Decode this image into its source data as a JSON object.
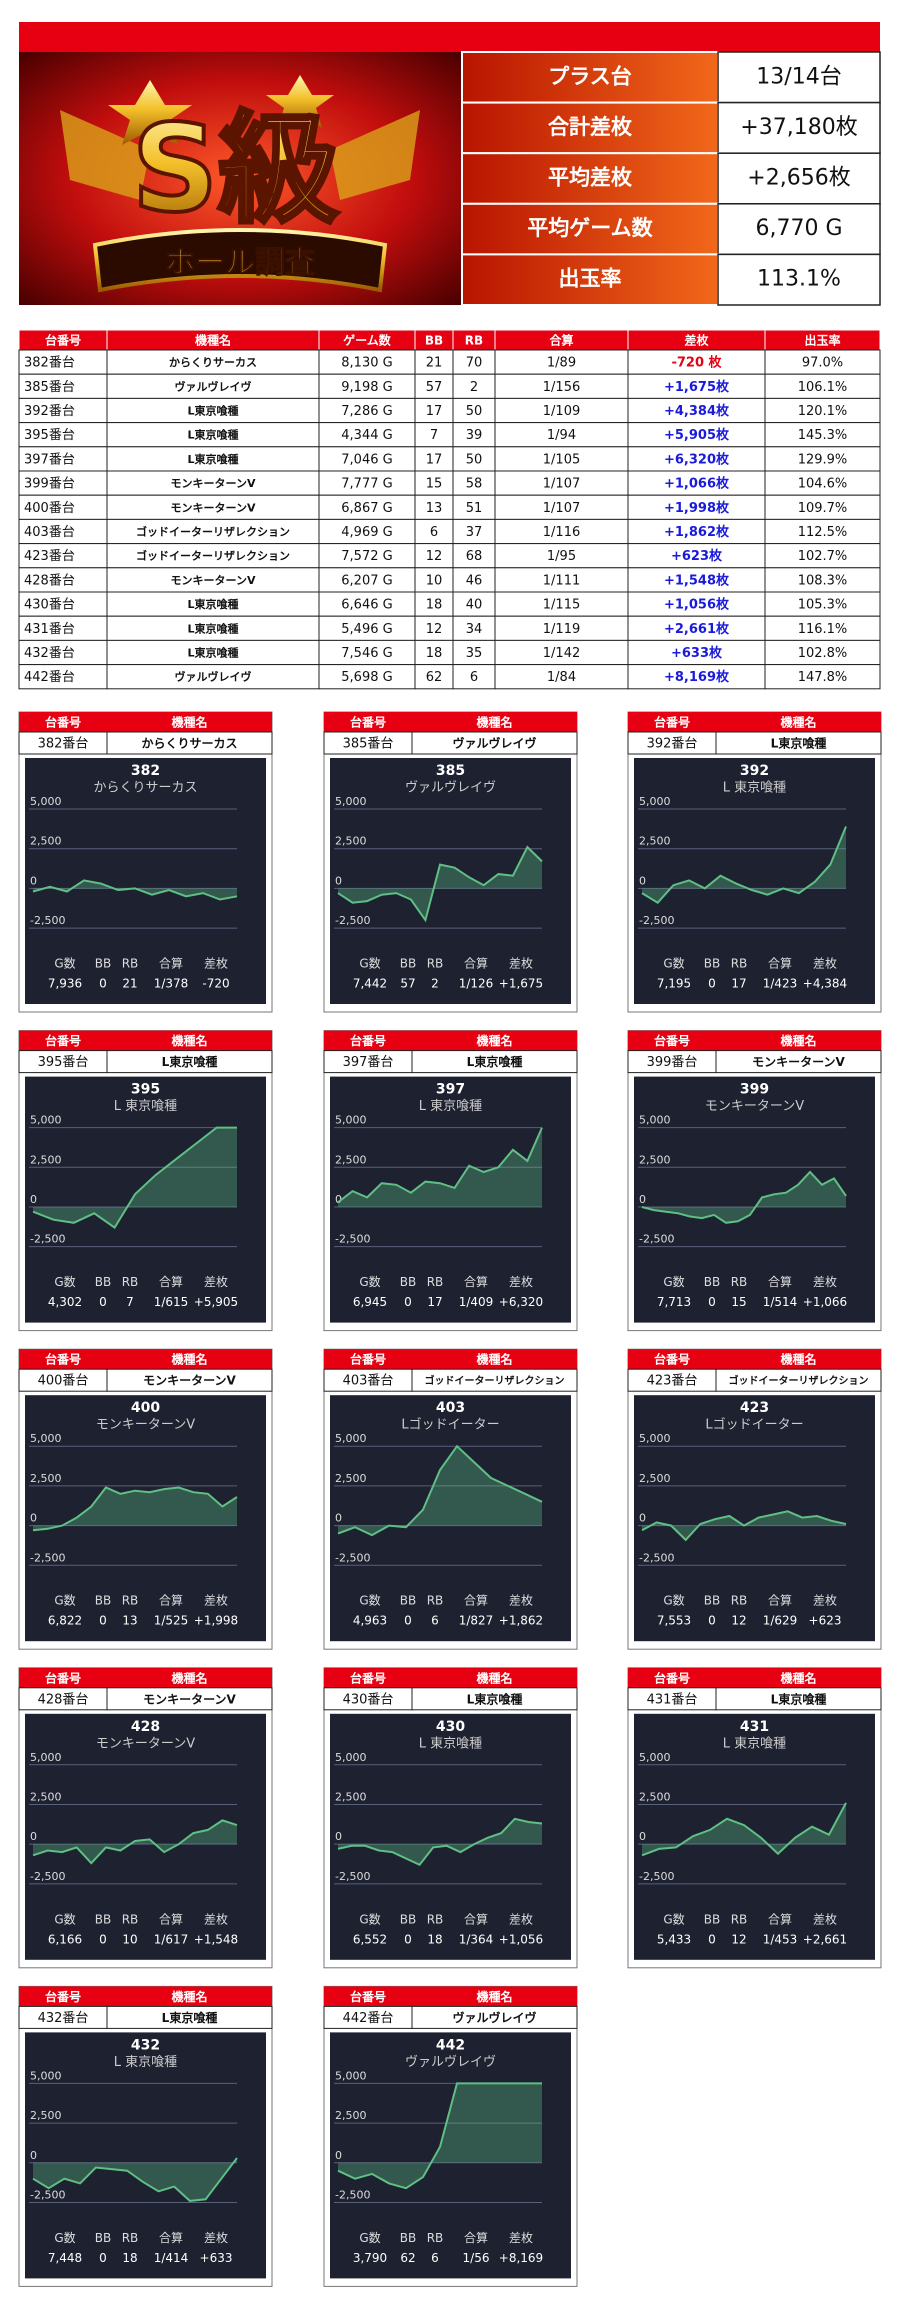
{
  "banner": {
    "logo": "S級",
    "subtitle": "ホール調査"
  },
  "summary": [
    {
      "label": "プラス台",
      "value": "13/14台"
    },
    {
      "label": "合計差枚",
      "value": "+37,180枚"
    },
    {
      "label": "平均差枚",
      "value": "+2,656枚"
    },
    {
      "label": "平均ゲーム数",
      "value": "6,770 G"
    },
    {
      "label": "出玉率",
      "value": "113.1%"
    }
  ],
  "table": {
    "header": [
      "台番号",
      "機種名",
      "ゲーム数",
      "BB",
      "RB",
      "合算",
      "差枚",
      "出玉率"
    ],
    "rows": [
      [
        "382番台",
        "からくりサーカス",
        "8,130 G",
        "21",
        "70",
        "1/89",
        "-720 枚",
        "97.0%"
      ],
      [
        "385番台",
        "ヴァルヴレイヴ",
        "9,198 G",
        "57",
        "2",
        "1/156",
        "+1,675枚",
        "106.1%"
      ],
      [
        "392番台",
        "L東京喰種",
        "7,286 G",
        "17",
        "50",
        "1/109",
        "+4,384枚",
        "120.1%"
      ],
      [
        "395番台",
        "L東京喰種",
        "4,344 G",
        "7",
        "39",
        "1/94",
        "+5,905枚",
        "145.3%"
      ],
      [
        "397番台",
        "L東京喰種",
        "7,046 G",
        "17",
        "50",
        "1/105",
        "+6,320枚",
        "129.9%"
      ],
      [
        "399番台",
        "モンキーターンV",
        "7,777 G",
        "15",
        "58",
        "1/107",
        "+1,066枚",
        "104.6%"
      ],
      [
        "400番台",
        "モンキーターンV",
        "6,867 G",
        "13",
        "51",
        "1/107",
        "+1,998枚",
        "109.7%"
      ],
      [
        "403番台",
        "ゴッドイーターリザレクション",
        "4,969 G",
        "6",
        "37",
        "1/116",
        "+1,862枚",
        "112.5%"
      ],
      [
        "423番台",
        "ゴッドイーターリザレクション",
        "7,572 G",
        "12",
        "68",
        "1/95",
        "+623枚",
        "102.7%"
      ],
      [
        "428番台",
        "モンキーターンV",
        "6,207 G",
        "10",
        "46",
        "1/111",
        "+1,548枚",
        "108.3%"
      ],
      [
        "430番台",
        "L東京喰種",
        "6,646 G",
        "18",
        "40",
        "1/115",
        "+1,056枚",
        "105.3%"
      ],
      [
        "431番台",
        "L東京喰種",
        "5,496 G",
        "12",
        "34",
        "1/119",
        "+2,661枚",
        "116.1%"
      ],
      [
        "432番台",
        "L東京喰種",
        "7,546 G",
        "18",
        "35",
        "1/142",
        "+633枚",
        "102.8%"
      ],
      [
        "442番台",
        "ヴァルヴレイヴ",
        "5,698 G",
        "62",
        "6",
        "1/84",
        "+8,169枚",
        "147.8%"
      ]
    ]
  },
  "card_header": [
    "台番号",
    "機種名"
  ],
  "stat_labels": [
    "G数",
    "BB",
    "RB",
    "合算",
    "差枚"
  ],
  "cards": [
    {
      "machine": "382番台",
      "model": "からくりサーカス",
      "stats": [
        "7,936",
        "0",
        "21",
        "1/378",
        "-720"
      ],
      "chart_data": {
        "type": "line",
        "title": "382",
        "subtitle": "からくりサーカス",
        "color": "#5fbf85",
        "values": [
          -200,
          100,
          -200,
          500,
          300,
          -100,
          0,
          -400,
          -100,
          -500,
          -300,
          -700,
          -500
        ],
        "ylim": [
          -3000,
          5000
        ],
        "yticks": [
          {
            "value": 5000,
            "label": "5,000"
          },
          {
            "value": 2500,
            "label": "2,500"
          },
          0,
          {
            "value": -2500,
            "label": "-2,500"
          }
        ]
      }
    },
    {
      "machine": "385番台",
      "model": "ヴァルヴレイヴ",
      "stats": [
        "7,442",
        "57",
        "2",
        "1/126",
        "+1,675"
      ],
      "chart_data": {
        "type": "line",
        "title": "385",
        "subtitle": "ヴァルヴレイヴ",
        "color": "#5fbf85",
        "values": [
          -300,
          -900,
          -800,
          -400,
          -300,
          -700,
          -2000,
          1500,
          1300,
          700,
          200,
          900,
          800,
          2600,
          1700
        ],
        "ylim": [
          -3000,
          5000
        ],
        "yticks": [
          {
            "value": 5000,
            "label": "5,000"
          },
          {
            "value": 2500,
            "label": "2,500"
          },
          0,
          {
            "value": -2500,
            "label": "-2,500"
          }
        ]
      }
    },
    {
      "machine": "392番台",
      "model": "L東京喰種",
      "stats": [
        "7,195",
        "0",
        "17",
        "1/423",
        "+4,384"
      ],
      "chart_data": {
        "type": "line",
        "title": "392",
        "subtitle": "L 東京喰種",
        "color": "#5fbf85",
        "values": [
          -300,
          -900,
          200,
          500,
          0,
          800,
          300,
          -100,
          -400,
          0,
          -300,
          400,
          1500,
          3900
        ],
        "ylim": [
          -3000,
          5000
        ],
        "yticks": [
          {
            "value": 5000,
            "label": "5,000"
          },
          {
            "value": 2500,
            "label": "2,500"
          },
          0,
          {
            "value": -2500,
            "label": "-2,500"
          }
        ]
      }
    },
    {
      "machine": "395番台",
      "model": "L東京喰種",
      "stats": [
        "4,302",
        "0",
        "7",
        "1/615",
        "+5,905"
      ],
      "chart_data": {
        "type": "line",
        "title": "395",
        "subtitle": "L 東京喰種",
        "color": "#5fbf85",
        "values": [
          -300,
          -800,
          -1000,
          -400,
          -1300,
          800,
          2000,
          3000,
          4000,
          5000,
          5000
        ],
        "ylim": [
          -3000,
          5000
        ],
        "yticks": [
          {
            "value": 5000,
            "label": "5,000"
          },
          {
            "value": 2500,
            "label": "2,500"
          },
          0,
          {
            "value": -2500,
            "label": "-2,500"
          }
        ]
      }
    },
    {
      "machine": "397番台",
      "model": "L東京喰種",
      "stats": [
        "6,945",
        "0",
        "17",
        "1/409",
        "+6,320"
      ],
      "chart_data": {
        "type": "line",
        "title": "397",
        "subtitle": "L 東京喰種",
        "color": "#5fbf85",
        "values": [
          300,
          1000,
          600,
          1500,
          1400,
          900,
          1600,
          1500,
          1200,
          2600,
          2200,
          2500,
          3600,
          2900,
          5000
        ],
        "ylim": [
          -3000,
          5000
        ],
        "yticks": [
          {
            "value": 5000,
            "label": "5,000"
          },
          {
            "value": 2500,
            "label": "2,500"
          },
          0,
          {
            "value": -2500,
            "label": "-2,500"
          }
        ]
      }
    },
    {
      "machine": "399番台",
      "model": "モンキーターンV",
      "stats": [
        "7,713",
        "0",
        "15",
        "1/514",
        "+1,066"
      ],
      "chart_data": {
        "type": "line",
        "title": "399",
        "subtitle": "モンキーターンV",
        "color": "#5fbf85",
        "values": [
          0,
          -200,
          -300,
          -400,
          -600,
          -700,
          -500,
          -1000,
          -900,
          -500,
          600,
          800,
          900,
          1400,
          2200,
          1400,
          1800,
          700
        ],
        "ylim": [
          -3000,
          5000
        ],
        "yticks": [
          {
            "value": 5000,
            "label": "5,000"
          },
          {
            "value": 2500,
            "label": "2,500"
          },
          0,
          {
            "value": -2500,
            "label": "-2,500"
          }
        ]
      }
    },
    {
      "machine": "400番台",
      "model": "モンキーターンV",
      "stats": [
        "6,822",
        "0",
        "13",
        "1/525",
        "+1,998"
      ],
      "chart_data": {
        "type": "line",
        "title": "400",
        "subtitle": "モンキーターンV",
        "color": "#5fbf85",
        "values": [
          -300,
          -200,
          0,
          500,
          1200,
          2400,
          2000,
          2200,
          2100,
          2300,
          2400,
          2100,
          2000,
          1200,
          1800
        ],
        "ylim": [
          -3000,
          5000
        ],
        "yticks": [
          {
            "value": 5000,
            "label": "5,000"
          },
          {
            "value": 2500,
            "label": "2,500"
          },
          0,
          {
            "value": -2500,
            "label": "-2,500"
          }
        ]
      }
    },
    {
      "machine": "403番台",
      "model": "ゴッドイーターリザレクション",
      "stats": [
        "4,963",
        "0",
        "6",
        "1/827",
        "+1,862"
      ],
      "chart_data": {
        "type": "line",
        "title": "403",
        "subtitle": "Lゴッドイーター",
        "color": "#5fbf85",
        "values": [
          -500,
          -100,
          -600,
          0,
          -100,
          1000,
          3500,
          5000,
          4000,
          3000,
          2500,
          2000,
          1500
        ],
        "ylim": [
          -3000,
          5000
        ],
        "yticks": [
          {
            "value": 5000,
            "label": "5,000"
          },
          {
            "value": 2500,
            "label": "2,500"
          },
          0,
          {
            "value": -2500,
            "label": "-2,500"
          }
        ]
      }
    },
    {
      "machine": "423番台",
      "model": "ゴッドイーターリザレクション",
      "stats": [
        "7,553",
        "0",
        "12",
        "1/629",
        "+623"
      ],
      "chart_data": {
        "type": "line",
        "title": "423",
        "subtitle": "Lゴッドイーター",
        "color": "#5fbf85",
        "values": [
          -300,
          200,
          0,
          -900,
          100,
          400,
          600,
          0,
          500,
          700,
          900,
          500,
          600,
          300,
          100
        ],
        "ylim": [
          -3000,
          5000
        ],
        "yticks": [
          {
            "value": 5000,
            "label": "5,000"
          },
          {
            "value": 2500,
            "label": "2,500"
          },
          0,
          {
            "value": -2500,
            "label": "-2,500"
          }
        ]
      }
    },
    {
      "machine": "428番台",
      "model": "モンキーターンV",
      "stats": [
        "6,166",
        "0",
        "10",
        "1/617",
        "+1,548"
      ],
      "chart_data": {
        "type": "line",
        "title": "428",
        "subtitle": "モンキーターンV",
        "color": "#5fbf85",
        "values": [
          -700,
          -400,
          -500,
          -200,
          -1200,
          -200,
          -400,
          200,
          300,
          -500,
          0,
          700,
          900,
          1500,
          1200
        ],
        "ylim": [
          -3000,
          5000
        ],
        "yticks": [
          {
            "value": 5000,
            "label": "5,000"
          },
          {
            "value": 2500,
            "label": "2,500"
          },
          0,
          {
            "value": -2500,
            "label": "-2,500"
          }
        ]
      }
    },
    {
      "machine": "430番台",
      "model": "L東京喰種",
      "stats": [
        "6,552",
        "0",
        "18",
        "1/364",
        "+1,056"
      ],
      "chart_data": {
        "type": "line",
        "title": "430",
        "subtitle": "L 東京喰種",
        "color": "#5fbf85",
        "values": [
          -300,
          -100,
          -100,
          -400,
          -500,
          -900,
          -1300,
          -200,
          -100,
          -500,
          0,
          400,
          700,
          1600,
          1400,
          1300
        ],
        "ylim": [
          -3000,
          5000
        ],
        "yticks": [
          {
            "value": 5000,
            "label": "5,000"
          },
          {
            "value": 2500,
            "label": "2,500"
          },
          0,
          {
            "value": -2500,
            "label": "-2,500"
          }
        ]
      }
    },
    {
      "machine": "431番台",
      "model": "L東京喰種",
      "stats": [
        "5,433",
        "0",
        "12",
        "1/453",
        "+2,661"
      ],
      "chart_data": {
        "type": "line",
        "title": "431",
        "subtitle": "L 東京喰種",
        "color": "#5fbf85",
        "values": [
          -700,
          -300,
          -200,
          500,
          900,
          1600,
          1200,
          400,
          -600,
          400,
          1100,
          600,
          2600
        ],
        "ylim": [
          -3000,
          5000
        ],
        "yticks": [
          {
            "value": 5000,
            "label": "5,000"
          },
          {
            "value": 2500,
            "label": "2,500"
          },
          0,
          {
            "value": -2500,
            "label": "-2,500"
          }
        ]
      }
    },
    {
      "machine": "432番台",
      "model": "L東京喰種",
      "stats": [
        "7,448",
        "0",
        "18",
        "1/414",
        "+633"
      ],
      "chart_data": {
        "type": "line",
        "title": "432",
        "subtitle": "L 東京喰種",
        "color": "#5fbf85",
        "values": [
          -1000,
          -1600,
          -1000,
          -1300,
          -300,
          -400,
          -500,
          -1200,
          -1800,
          -1500,
          -2400,
          -2300,
          -1000,
          300
        ],
        "ylim": [
          -3000,
          5000
        ],
        "yticks": [
          {
            "value": 5000,
            "label": "5,000"
          },
          {
            "value": 2500,
            "label": "2,500"
          },
          0,
          {
            "value": -2500,
            "label": "-2,500"
          }
        ]
      }
    },
    {
      "machine": "442番台",
      "model": "ヴァルヴレイヴ",
      "stats": [
        "3,790",
        "62",
        "6",
        "1/56",
        "+8,169"
      ],
      "chart_data": {
        "type": "line",
        "title": "442",
        "subtitle": "ヴァルヴレイヴ",
        "color": "#5fbf85",
        "values": [
          -500,
          -1000,
          -700,
          -1300,
          -1600,
          -900,
          1000,
          5000,
          5000,
          5000,
          5000,
          5000,
          5000
        ],
        "ylim": [
          -3000,
          5000
        ],
        "yticks": [
          {
            "value": 5000,
            "label": "5,000"
          },
          {
            "value": 2500,
            "label": "2,500"
          },
          0,
          {
            "value": -2500,
            "label": "-2,500"
          }
        ]
      }
    }
  ]
}
